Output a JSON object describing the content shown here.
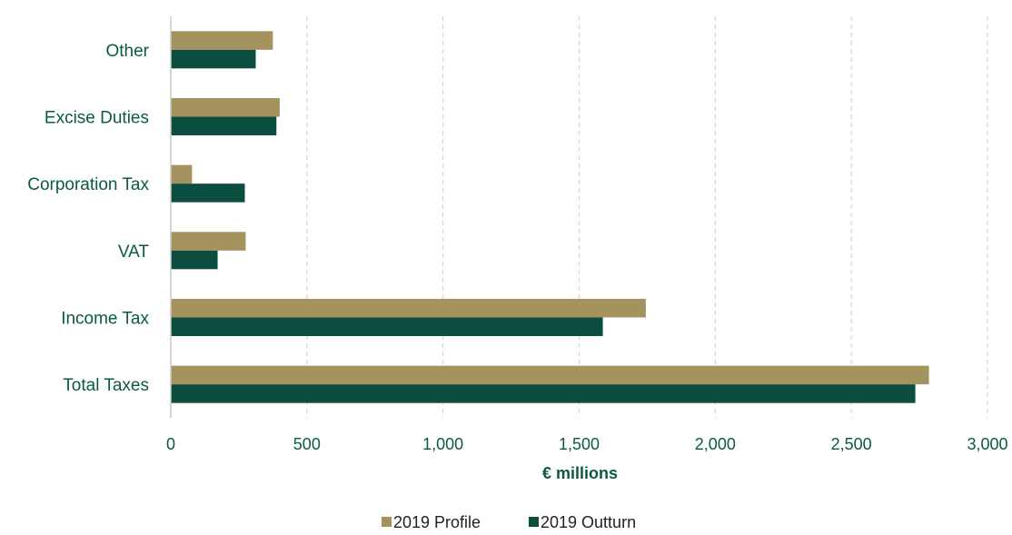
{
  "chart_data": {
    "type": "bar",
    "orientation": "horizontal",
    "categories": [
      "Other",
      "Excise Duties",
      "Corporation Tax",
      "VAT",
      "Income Tax",
      "Total Taxes"
    ],
    "series": [
      {
        "name": "2019 Profile",
        "color": "#a4935f",
        "values": [
          375,
          400,
          78,
          275,
          1745,
          2785
        ]
      },
      {
        "name": "2019 Outturn",
        "color": "#0b4d3f",
        "values": [
          312,
          388,
          272,
          172,
          1587,
          2735
        ]
      }
    ],
    "xlabel": "€ millions",
    "ylabel": "",
    "xlim": [
      0,
      3000
    ],
    "xticks": [
      0,
      500,
      1000,
      1500,
      2000,
      2500,
      3000
    ],
    "xtick_labels": [
      "0",
      "500",
      "1,000",
      "1,500",
      "2,000",
      "2,500",
      "3,000"
    ],
    "grid": "vertical dashed",
    "legend": "bottom-center"
  }
}
